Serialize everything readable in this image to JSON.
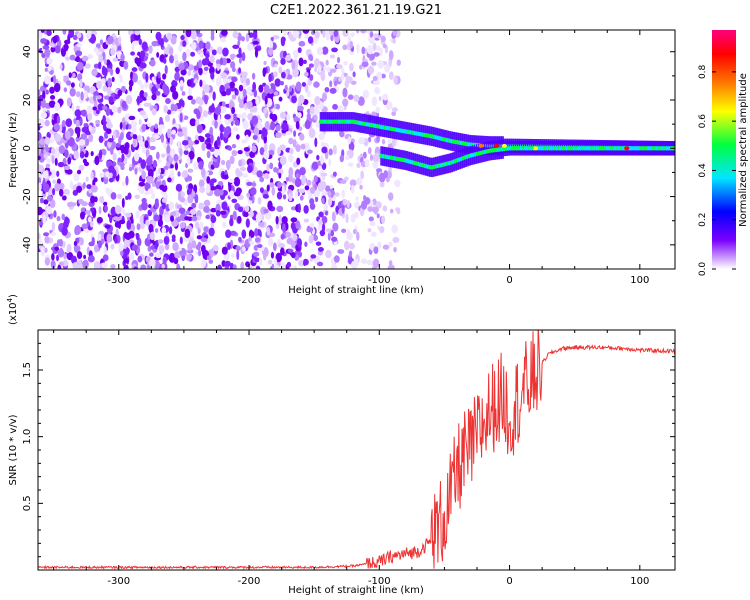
{
  "title": "C2E1.2022.361.21.19.G21",
  "chart_data": [
    {
      "type": "heatmap",
      "name": "spectrogram",
      "xlabel": "Height of straight line (km)",
      "ylabel": "Frequency (Hz)",
      "xlim": [
        -362,
        127
      ],
      "ylim": [
        -50,
        49
      ],
      "xticks": [
        -300,
        -200,
        -100,
        0,
        100
      ],
      "yticks": [
        -40,
        -20,
        0,
        20,
        40
      ],
      "colorbar": {
        "label": "Normalized spectral amplitude",
        "range": [
          0,
          0.97
        ],
        "ticks": [
          "0.0",
          "0.2",
          "0.4",
          "0.6",
          "0.8"
        ],
        "colors": [
          "#ffffff",
          "#7a00ff",
          "#0000ff",
          "#00e5ff",
          "#00ff40",
          "#ffff00",
          "#ff7700",
          "#ff0000",
          "#ff0080"
        ]
      },
      "noise_region_x": [
        -362,
        -85
      ],
      "ridge": {
        "note_x": [
          -145,
          -120,
          -100,
          -80,
          -60,
          -45,
          -30,
          -15,
          0,
          127
        ],
        "upper_branch_freq_hz": [
          11,
          11,
          9,
          7,
          5,
          3,
          1.5,
          1,
          1,
          0
        ],
        "lower_branch_freq_hz": [
          null,
          null,
          -3,
          -5,
          -8,
          -6,
          -3,
          -1,
          0,
          0
        ]
      }
    },
    {
      "type": "line",
      "name": "snr",
      "xlabel": "Height of straight line (km)",
      "ylabel": "SNR (10 * v/v)",
      "y_multiplier": "(x10",
      "y_multiplier_exp": "4",
      "y_multiplier_close": ")",
      "xlim": [
        -362,
        127
      ],
      "ylim": [
        0,
        1.8
      ],
      "xticks": [
        -300,
        -200,
        -100,
        0,
        100
      ],
      "yticks": [
        0.5,
        1.0,
        1.5
      ],
      "ytick_labels": [
        "0.5",
        "1.0",
        "1.5"
      ],
      "color": "#ee3333",
      "series": [
        {
          "x": [
            -362,
            -300,
            -250,
            -200,
            -150,
            -120,
            -100,
            -90,
            -80,
            -70,
            -60,
            -50,
            -45,
            -40,
            -35,
            -30,
            -25,
            -20,
            -15,
            -10,
            -5,
            0,
            5,
            10,
            15,
            20,
            25,
            30,
            40,
            50,
            70,
            90,
            100,
            127
          ],
          "y": [
            0.02,
            0.02,
            0.02,
            0.02,
            0.02,
            0.03,
            0.06,
            0.1,
            0.12,
            0.14,
            0.22,
            0.4,
            0.55,
            0.75,
            0.85,
            0.9,
            1.0,
            1.1,
            1.2,
            1.25,
            1.3,
            1.15,
            1.25,
            1.35,
            1.4,
            1.48,
            1.55,
            1.62,
            1.66,
            1.67,
            1.67,
            1.66,
            1.65,
            1.64
          ]
        }
      ]
    }
  ]
}
